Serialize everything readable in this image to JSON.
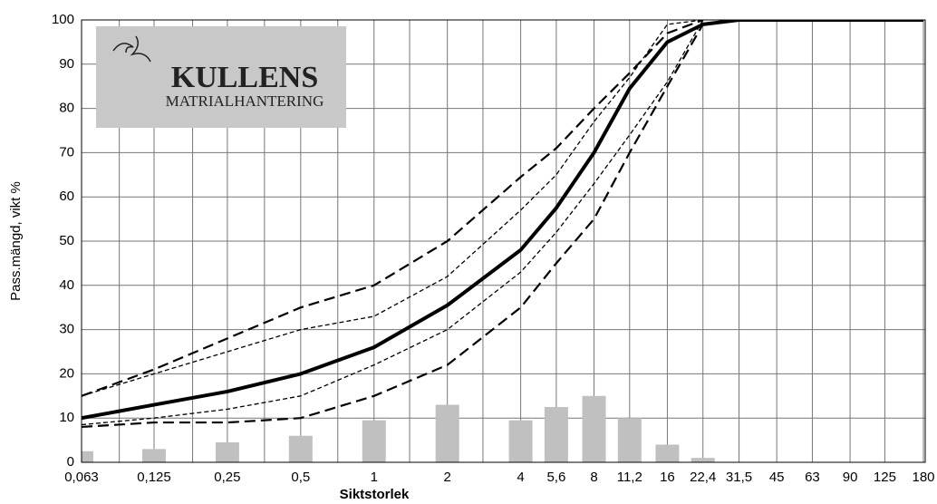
{
  "chart_data": {
    "type": "line",
    "ylabel": "Pass.mängd, vikt %",
    "xlabel": "Siktstorlek",
    "logo": {
      "title": "KULLENS",
      "subtitle": "MATRIALHANTERING"
    },
    "x": [
      0.063,
      0.125,
      0.25,
      0.5,
      1,
      2,
      4,
      5.6,
      8,
      11.2,
      16,
      22.4,
      31.5,
      45,
      63,
      90,
      125,
      180
    ],
    "xscale": "log",
    "xlim": [
      0.063,
      180
    ],
    "xticks": [
      {
        "value": 0.063,
        "label": "0,063"
      },
      {
        "value": 0.125,
        "label": "0,125"
      },
      {
        "value": 0.25,
        "label": "0,25"
      },
      {
        "value": 0.5,
        "label": "0,5"
      },
      1,
      2,
      4,
      {
        "value": 5.6,
        "label": "5,6"
      },
      8,
      {
        "value": 11.2,
        "label": "11,2"
      },
      16,
      {
        "value": 22.4,
        "label": "22,4"
      },
      {
        "value": 31.5,
        "label": "31,5"
      },
      45,
      63,
      90,
      125,
      180
    ],
    "xminorticks": [
      0.09,
      0.18,
      0.355,
      0.71,
      1.4,
      2.8
    ],
    "ylim": [
      0,
      100
    ],
    "yticks": [
      0,
      10,
      20,
      30,
      40,
      50,
      60,
      70,
      80,
      90,
      100
    ],
    "grid": true,
    "bars": {
      "color": "#c0c0c0",
      "values": [
        2.5,
        3,
        4.5,
        6,
        9.5,
        13,
        9.5,
        12.5,
        15,
        10,
        4,
        1,
        null,
        null,
        null,
        null,
        null,
        null
      ]
    },
    "series": [
      {
        "style": "dashed",
        "color": "#000000",
        "values": [
          15,
          21,
          28,
          35,
          40,
          50,
          64.5,
          71,
          80,
          88,
          97,
          100,
          null,
          null,
          null,
          null,
          null,
          null
        ]
      },
      {
        "style": "thin-dashed",
        "color": "#000000",
        "values": [
          15,
          20,
          25,
          30,
          33,
          42,
          57,
          65,
          77,
          87,
          99,
          100,
          null,
          null,
          null,
          null,
          null,
          null
        ]
      },
      {
        "style": "thick",
        "color": "#000000",
        "values": [
          10,
          13,
          16,
          20,
          26,
          35.5,
          48,
          57.5,
          70,
          84.5,
          95,
          99,
          100,
          100,
          100,
          100,
          100,
          100
        ]
      },
      {
        "style": "thin-dashed",
        "color": "#000000",
        "values": [
          8.5,
          10,
          12,
          15,
          22,
          30,
          43,
          52,
          63,
          74,
          86,
          100,
          null,
          null,
          null,
          null,
          null,
          null
        ]
      },
      {
        "style": "dashed",
        "color": "#000000",
        "values": [
          8,
          9,
          9,
          10,
          15,
          22,
          35,
          45,
          55,
          70,
          85,
          99,
          null,
          null,
          null,
          null,
          null,
          null
        ]
      }
    ]
  }
}
